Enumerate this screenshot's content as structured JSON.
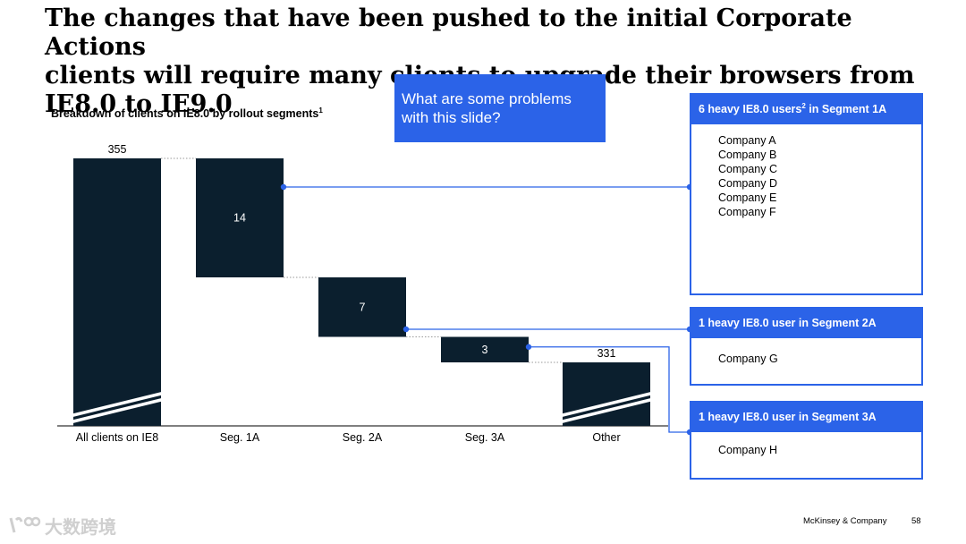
{
  "slide": {
    "title": "The changes that have been pushed to the initial Corporate Actions\nclients will require many clients to upgrade their browsers from\nIE8.0 to IE9.0",
    "subtitle": "Breakdown of clients on IE8.0 by rollout segments",
    "subtitle_footnote": "1",
    "callout": "What are some problems\nwith this slide?",
    "footer_brand": "McKinsey & Company",
    "page_number": "58",
    "watermark": "大数跨境"
  },
  "chart_data": {
    "type": "bar",
    "subtype": "waterfall",
    "categories": [
      "All clients on IE8",
      "Seg. 1A",
      "Seg. 2A",
      "Seg. 3A",
      "Other"
    ],
    "values": [
      355,
      14,
      7,
      3,
      331
    ],
    "label_positions": [
      "above",
      "inside",
      "inside",
      "inside",
      "above"
    ],
    "axis_break": [
      "All clients on IE8",
      "Other"
    ],
    "bar_color": "#0b1f2e",
    "connector_color": "#2b63e8",
    "title": "Breakdown of clients on IE8.0 by rollout segments"
  },
  "panels": [
    {
      "title": "6 heavy IE8.0 users",
      "title_sup": "2",
      "title_suffix": " in Segment 1A",
      "segment": "Seg. 1A",
      "items": [
        "Company  A",
        "Company  B",
        "Company  C",
        "Company  D",
        "Company  E",
        "Company  F"
      ]
    },
    {
      "title": "1 heavy IE8.0 user in Segment 2A",
      "title_sup": "",
      "title_suffix": "",
      "segment": "Seg. 2A",
      "items": [
        "Company G"
      ]
    },
    {
      "title": "1 heavy IE8.0 user in Segment 3A",
      "title_sup": "",
      "title_suffix": "",
      "segment": "Seg. 3A",
      "items": [
        "Company H"
      ]
    }
  ],
  "colors": {
    "accent": "#2b63e8",
    "bar": "#0b1f2e"
  }
}
